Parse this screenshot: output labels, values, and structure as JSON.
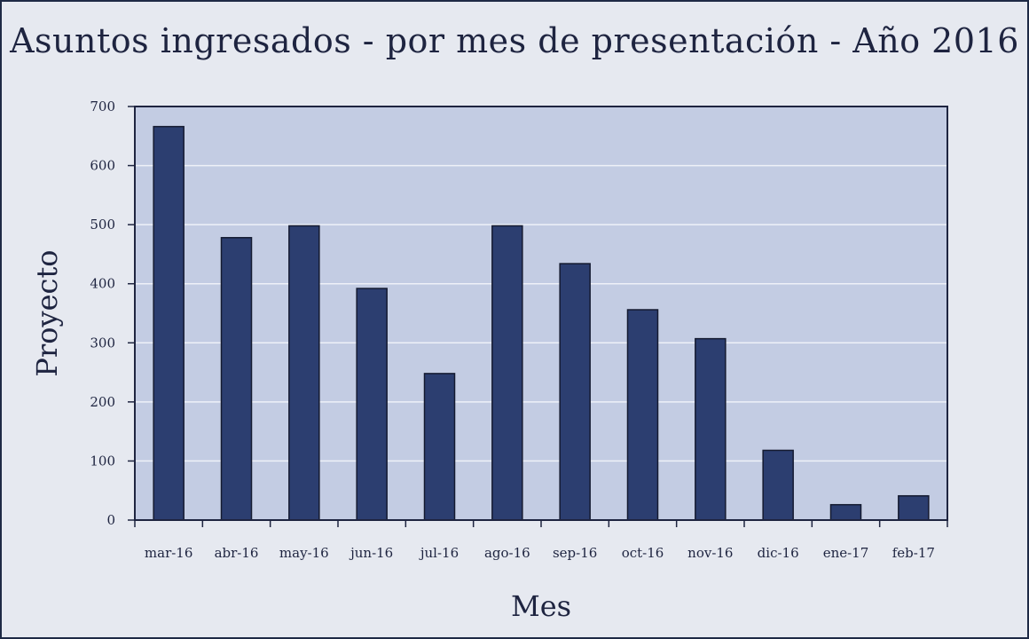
{
  "chart_data": {
    "type": "bar",
    "title": "Asuntos ingresados - por mes de presentación - Año 2016",
    "xlabel": "Mes",
    "ylabel": "Proyecto",
    "categories": [
      "mar-16",
      "abr-16",
      "may-16",
      "jun-16",
      "jul-16",
      "ago-16",
      "sep-16",
      "oct-16",
      "nov-16",
      "dic-16",
      "ene-17",
      "feb-17"
    ],
    "values": [
      666,
      478,
      498,
      392,
      248,
      498,
      434,
      356,
      307,
      118,
      26,
      41
    ],
    "ylim": [
      0,
      700
    ],
    "yticks": [
      "0",
      "100",
      "200",
      "300",
      "400",
      "500",
      "600",
      "700"
    ],
    "grid": true,
    "colors": {
      "bar": "#2c3e70",
      "plot_bg": "#c3cce3",
      "page_bg": "#e6e9f0",
      "grid": "#eef1f8"
    }
  }
}
